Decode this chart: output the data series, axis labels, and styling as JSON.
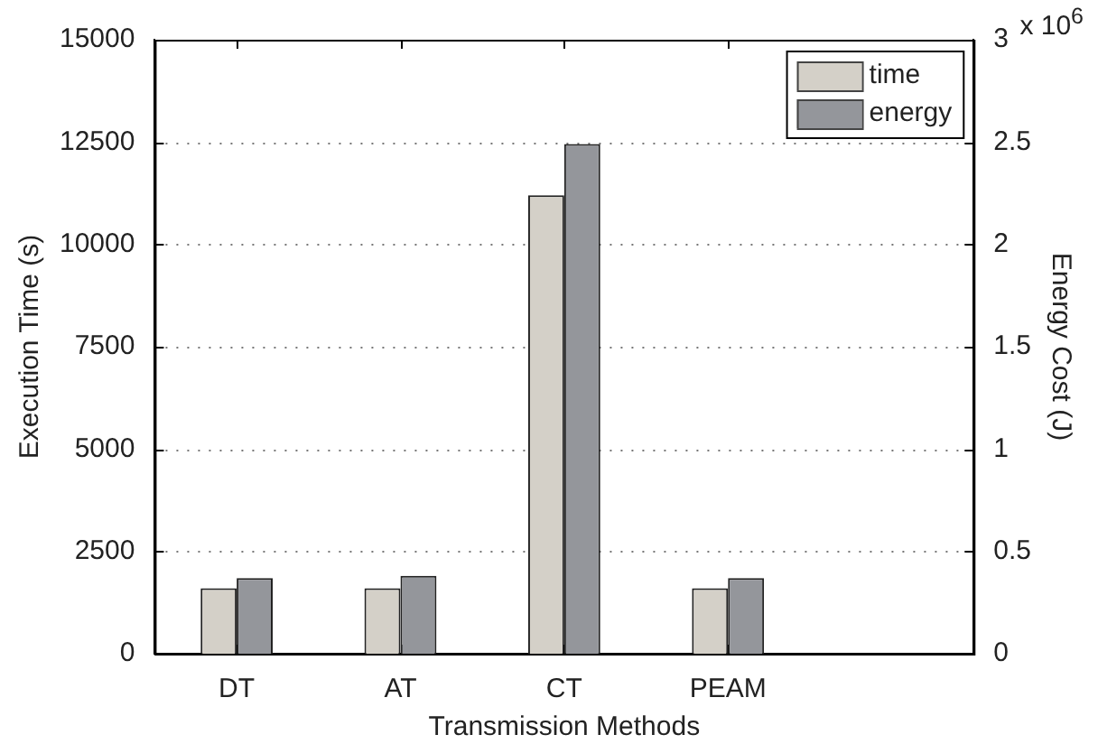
{
  "chart_data": {
    "type": "bar",
    "xlabel": "Transmission Methods",
    "ylabel": "Execution Time (s)",
    "y2label": "Energy Cost (J)",
    "categories": [
      "DT",
      "AT",
      "CT",
      "PEAM",
      null
    ],
    "series": [
      {
        "name": "time",
        "color": "#d4d0c8",
        "values": [
          1600,
          1600,
          11200,
          1600,
          null
        ]
      },
      {
        "name": "energy",
        "color": "#94969b",
        "axis": "y2",
        "values": [
          0.37,
          0.38,
          2.49,
          0.37,
          null
        ]
      }
    ],
    "ylim": [
      0,
      15000
    ],
    "yticks": [
      0,
      2500,
      5000,
      7500,
      10000,
      12500,
      15000
    ],
    "y2lim": [
      0,
      3
    ],
    "y2ticks": [
      0,
      0.5,
      1,
      1.5,
      2,
      2.5,
      3
    ],
    "annotations": [
      "x 10$^{6}$"
    ],
    "grid": "y",
    "legend": "top right"
  }
}
